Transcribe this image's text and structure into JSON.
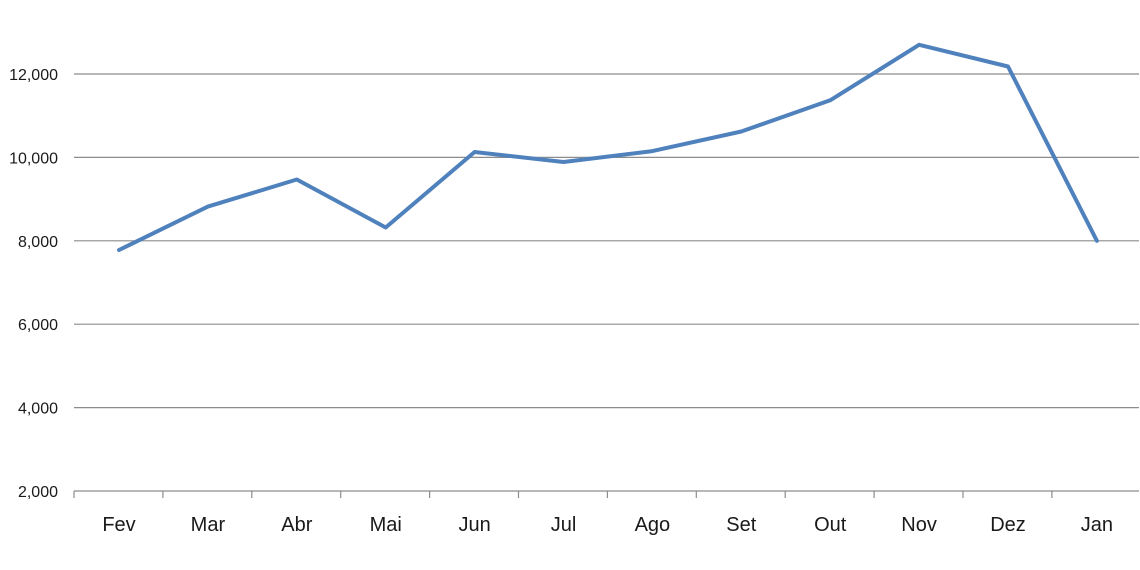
{
  "chart_data": {
    "type": "line",
    "title": "",
    "xlabel": "",
    "ylabel": "",
    "categories": [
      "Fev",
      "Mar",
      "Abr",
      "Mai",
      "Jun",
      "Jul",
      "Ago",
      "Set",
      "Out",
      "Nov",
      "Dez",
      "Jan"
    ],
    "series": [
      {
        "values": [
          7780,
          8820,
          9470,
          8320,
          10130,
          9890,
          10150,
          10620,
          11370,
          12700,
          12180,
          8000
        ],
        "color": "#4f81bd"
      }
    ],
    "ylim": [
      2000,
      12800
    ],
    "y_ticks": [
      2000,
      4000,
      6000,
      8000,
      10000,
      12000
    ],
    "y_tick_labels": [
      "2,000",
      "4,000",
      "6,000",
      "8,000",
      "10,000",
      "12,000"
    ],
    "grid": true,
    "legend": "none"
  }
}
